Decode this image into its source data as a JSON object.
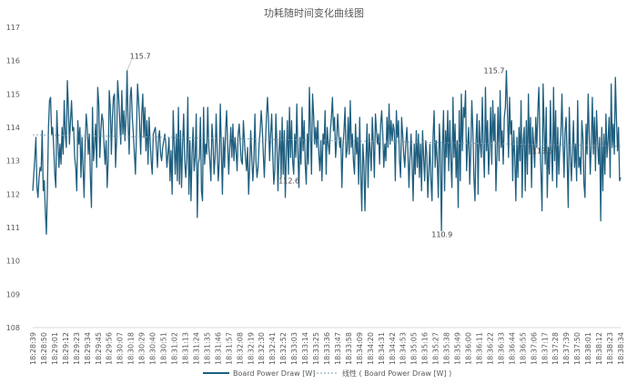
{
  "chart_data": {
    "type": "line",
    "title": "功耗随时间变化曲线图",
    "xlabel": "",
    "ylabel": "",
    "ylim": [
      108,
      117
    ],
    "yticks": [
      108,
      109,
      110,
      111,
      112,
      113,
      114,
      115,
      116,
      117
    ],
    "grid": false,
    "legend_position": "bottom",
    "x_tick_labels": [
      "18:28:39",
      "18:28:50",
      "18:29:01",
      "18:29:12",
      "18:29:23",
      "18:29:34",
      "18:29:45",
      "18:29:56",
      "18:30:07",
      "18:30:18",
      "18:30:29",
      "18:30:40",
      "18:30:51",
      "18:31:02",
      "18:31:13",
      "18:31:24",
      "18:31:35",
      "18:31:46",
      "18:31:57",
      "18:32:08",
      "18:32:19",
      "18:32:30",
      "18:32:41",
      "18:32:52",
      "18:33:03",
      "18:33:14",
      "18:33:25",
      "18:33:36",
      "18:33:47",
      "18:33:58",
      "18:34:09",
      "18:34:20",
      "18:34:31",
      "18:34:42",
      "18:34:53",
      "18:35:05",
      "18:35:16",
      "18:35:27",
      "18:35:38",
      "18:35:49",
      "18:36:00",
      "18:36:11",
      "18:36:22",
      "18:36:33",
      "18:36:44",
      "18:36:55",
      "18:37:06",
      "18:37:17",
      "18:37:28",
      "18:37:39",
      "18:37:50",
      "18:38:01",
      "18:38:12",
      "18:38:23",
      "18:38:34"
    ],
    "series": [
      {
        "name": "Board Power Draw [W]",
        "color": "#1f5f7f",
        "values": [
          112.1,
          112.6,
          113.1,
          113.7,
          112.2,
          111.9,
          112.5,
          112.8,
          112.7,
          113.9,
          112.1,
          112.4,
          111.5,
          110.8,
          112.2,
          114.0,
          114.8,
          114.9,
          113.8,
          114.0,
          113.4,
          112.6,
          112.2,
          114.5,
          113.6,
          112.8,
          113.5,
          112.9,
          114.0,
          113.2,
          114.8,
          113.8,
          113.4,
          115.4,
          114.6,
          113.5,
          114.2,
          114.8,
          113.9,
          114.0,
          113.1,
          112.8,
          112.1,
          114.2,
          113.5,
          114.0,
          112.5,
          113.7,
          112.8,
          111.9,
          113.5,
          114.4,
          114.0,
          113.2,
          113.8,
          112.5,
          111.6,
          114.6,
          113.0,
          113.5,
          114.1,
          112.8,
          115.2,
          114.7,
          113.1,
          113.9,
          114.4,
          114.2,
          113.5,
          112.9,
          113.6,
          112.2,
          113.0,
          115.1,
          114.6,
          113.2,
          114.3,
          114.9,
          115.0,
          112.8,
          113.6,
          115.4,
          114.9,
          114.2,
          113.5,
          115.1,
          113.8,
          114.5,
          113.6,
          114.3,
          115.7,
          114.1,
          113.2,
          114.9,
          115.2,
          114.3,
          113.8,
          113.2,
          112.6,
          113.9,
          115.3,
          114.8,
          114.1,
          113.2,
          114.4,
          115.0,
          113.7,
          114.6,
          113.3,
          114.2,
          112.9,
          114.3,
          113.6,
          113.0,
          112.6,
          113.8,
          113.9,
          114.0,
          113.4,
          112.8,
          113.7,
          113.9,
          113.2,
          113.0,
          113.4,
          113.6,
          113.8,
          113.5,
          112.8,
          113.2,
          113.7,
          112.4,
          113.3,
          112.0,
          114.5,
          113.5,
          112.6,
          113.8,
          112.4,
          114.6,
          112.3,
          113.9,
          112.2,
          113.5,
          114.4,
          113.0,
          112.5,
          113.1,
          114.9,
          112.0,
          113.6,
          111.8,
          113.2,
          114.0,
          112.7,
          113.1,
          114.4,
          111.3,
          112.9,
          113.1,
          114.3,
          112.1,
          111.8,
          114.6,
          112.9,
          113.5,
          113.2,
          114.6,
          113.4,
          113.0,
          112.4,
          114.1,
          113.6,
          112.6,
          113.1,
          114.4,
          113.3,
          112.4,
          113.0,
          114.7,
          113.3,
          112.0,
          113.7,
          112.8,
          113.9,
          114.5,
          113.5,
          112.6,
          113.4,
          114.0,
          113.1,
          114.1,
          113.0,
          113.7,
          113.3,
          112.7,
          113.8,
          114.1,
          113.5,
          113.0,
          112.9,
          114.2,
          113.6,
          113.1,
          112.7,
          113.4,
          112.0,
          112.8,
          113.9,
          113.1,
          112.4,
          113.0,
          114.4,
          113.0,
          112.5,
          112.8,
          113.5,
          113.9,
          114.5,
          114.0,
          113.2,
          112.5,
          113.5,
          114.3,
          114.9,
          114.2,
          113.0,
          113.8,
          114.4,
          113.2,
          112.3,
          112.7,
          114.4,
          113.5,
          112.1,
          113.3,
          113.9,
          112.5,
          114.3,
          112.6,
          113.9,
          111.9,
          113.2,
          114.2,
          112.6,
          114.6,
          113.1,
          114.2,
          113.0,
          112.6,
          113.8,
          113.1,
          114.7,
          113.3,
          112.2,
          113.7,
          112.9,
          114.6,
          113.3,
          114.2,
          112.9,
          112.3,
          113.8,
          112.9,
          115.2,
          113.9,
          112.6,
          115.0,
          114.4,
          113.5,
          114.0,
          113.4,
          114.2,
          113.2,
          112.7,
          113.6,
          112.4,
          113.8,
          113.5,
          114.5,
          112.6,
          114.0,
          113.5,
          113.2,
          113.9,
          114.3,
          114.9,
          113.9,
          114.3,
          113.1,
          113.6,
          114.4,
          113.8,
          113.4,
          113.7,
          112.2,
          113.4,
          113.9,
          114.6,
          113.1,
          113.3,
          114.3,
          113.2,
          114.8,
          113.4,
          113.8,
          113.0,
          112.6,
          114.1,
          113.2,
          113.7,
          112.3,
          114.3,
          112.6,
          111.5,
          113.5,
          112.9,
          111.5,
          113.0,
          114.1,
          112.2,
          113.8,
          113.3,
          112.7,
          114.3,
          113.5,
          112.5,
          114.4,
          113.9,
          113.5,
          113.8,
          112.9,
          114.1,
          114.5,
          113.8,
          112.8,
          113.5,
          113.0,
          114.3,
          113.4,
          114.7,
          113.5,
          114.2,
          113.6,
          114.1,
          113.9,
          112.4,
          114.5,
          113.7,
          114.2,
          113.0,
          112.5,
          114.3,
          113.8,
          113.2,
          112.8,
          113.5,
          114.0,
          113.3,
          112.2,
          113.1,
          113.8,
          112.9,
          111.8,
          113.5,
          112.6,
          113.9,
          112.8,
          113.8,
          112.5,
          113.5,
          112.1,
          113.9,
          113.1,
          112.4,
          113.6,
          113.2,
          111.9,
          112.7,
          113.5,
          112.4,
          111.8,
          113.7,
          114.5,
          112.8,
          113.6,
          113.0,
          111.9,
          114.1,
          113.3,
          110.9,
          113.4,
          114.5,
          112.1,
          113.9,
          113.1,
          114.5,
          112.7,
          114.2,
          113.0,
          112.2,
          114.9,
          113.1,
          114.1,
          112.5,
          113.6,
          111.6,
          114.5,
          112.4,
          115.0,
          113.3,
          114.6,
          114.3,
          115.1,
          112.7,
          113.5,
          114.0,
          112.3,
          113.3,
          114.8,
          113.9,
          112.5,
          111.8,
          113.6,
          114.4,
          112.0,
          114.2,
          113.5,
          113.1,
          114.9,
          113.3,
          112.5,
          115.2,
          113.3,
          114.2,
          112.6,
          113.4,
          114.6,
          112.9,
          114.8,
          113.6,
          114.4,
          112.1,
          113.2,
          114.6,
          113.0,
          115.1,
          113.4,
          113.9,
          112.9,
          114.3,
          114.6,
          115.7,
          114.5,
          113.1,
          114.9,
          113.8,
          114.2,
          112.4,
          113.9,
          113.1,
          111.8,
          113.7,
          112.5,
          114.0,
          113.0,
          114.8,
          111.9,
          113.6,
          114.0,
          112.1,
          114.2,
          112.6,
          115.0,
          113.2,
          114.3,
          112.2,
          114.0,
          113.5,
          112.8,
          114.3,
          113.4,
          114.5,
          115.2,
          113.6,
          112.6,
          111.5,
          115.3,
          114.0,
          112.9,
          114.6,
          111.9,
          113.4,
          112.6,
          114.8,
          113.3,
          112.4,
          115.2,
          113.0,
          114.5,
          112.2,
          114.0,
          112.6,
          113.4,
          113.8,
          115.0,
          113.6,
          112.5,
          113.9,
          114.3,
          113.0,
          111.6,
          114.6,
          113.2,
          112.4,
          113.3,
          114.2,
          112.8,
          113.5,
          112.4,
          114.8,
          112.8,
          113.1,
          112.6,
          114.2,
          113.7,
          112.3,
          111.9,
          114.1,
          113.2,
          115.0,
          113.8,
          112.6,
          113.5,
          114.9,
          113.2,
          114.3,
          112.7,
          114.5,
          113.6,
          112.9,
          113.7,
          111.2,
          114.0,
          112.1,
          113.8,
          112.6,
          114.4,
          113.1,
          113.6,
          114.3,
          112.5,
          115.3,
          113.4,
          114.1,
          113.2,
          115.5,
          114.3,
          113.3,
          114.0,
          112.4,
          112.5
        ]
      },
      {
        "name": "线性 ( Board Power Draw [W] )",
        "type": "trendline",
        "color": "#7f9fb3",
        "values": [
          113.78,
          113.44
        ]
      }
    ],
    "annotations": [
      {
        "text": "115.7",
        "series_index": 90,
        "value": 115.7
      },
      {
        "text": "112.6",
        "series_index": 232,
        "value": 112.6
      },
      {
        "text": "110.9",
        "series_index": 378,
        "value": 110.9
      },
      {
        "text": "115.7",
        "series_index": 426,
        "value": 115.7
      },
      {
        "text": "113.5",
        "series_index": 474,
        "value": 113.5
      }
    ]
  }
}
